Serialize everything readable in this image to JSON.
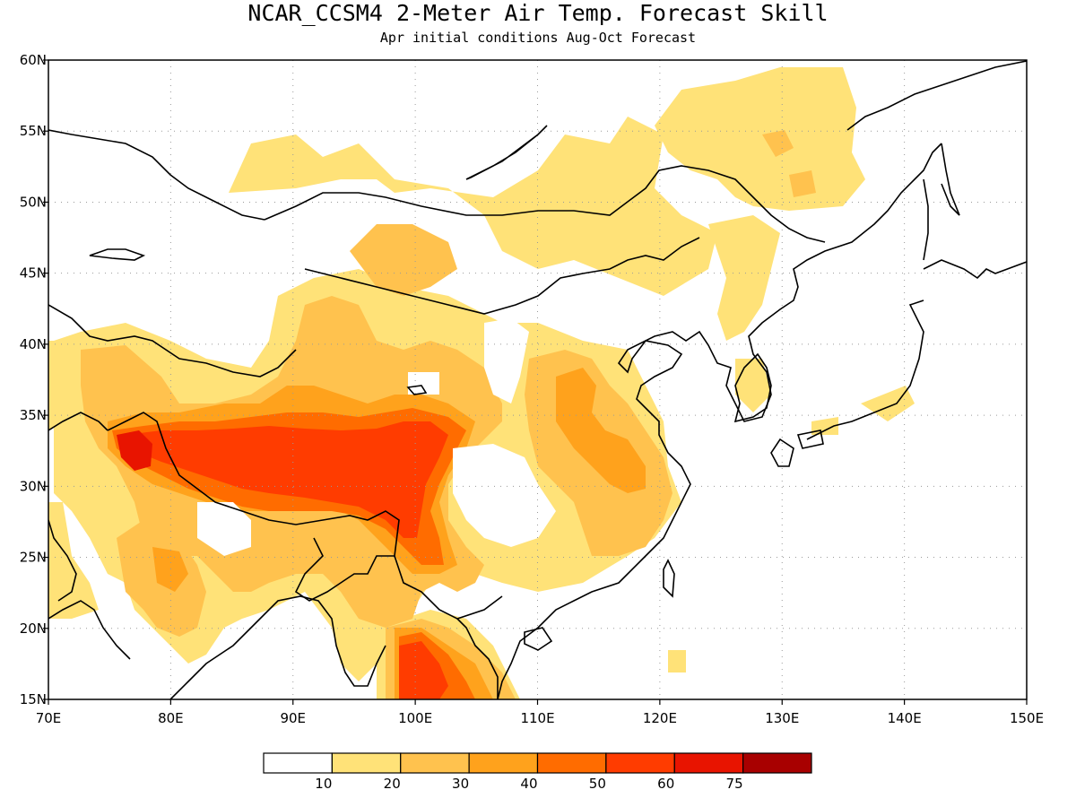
{
  "title": "NCAR_CCSM4 2-Meter Air Temp. Forecast Skill",
  "subtitle": "Apr initial conditions  Aug-Oct Forecast",
  "map": {
    "lon_range": [
      70,
      150
    ],
    "lat_range": [
      15,
      60
    ],
    "lon_ticks": [
      "70E",
      "80E",
      "90E",
      "100E",
      "110E",
      "120E",
      "130E",
      "140E",
      "150E"
    ],
    "lat_ticks": [
      "15N",
      "20N",
      "25N",
      "30N",
      "35N",
      "40N",
      "45N",
      "50N",
      "55N",
      "60N"
    ],
    "gridlines": "dotted"
  },
  "colorbar": {
    "colors": [
      "#ffffff",
      "#ffe278",
      "#ffc24e",
      "#ffa21c",
      "#ff6c00",
      "#ff3c00",
      "#e81400",
      "#a80000"
    ],
    "labels": [
      "10",
      "20",
      "30",
      "40",
      "50",
      "60",
      "75"
    ]
  }
}
